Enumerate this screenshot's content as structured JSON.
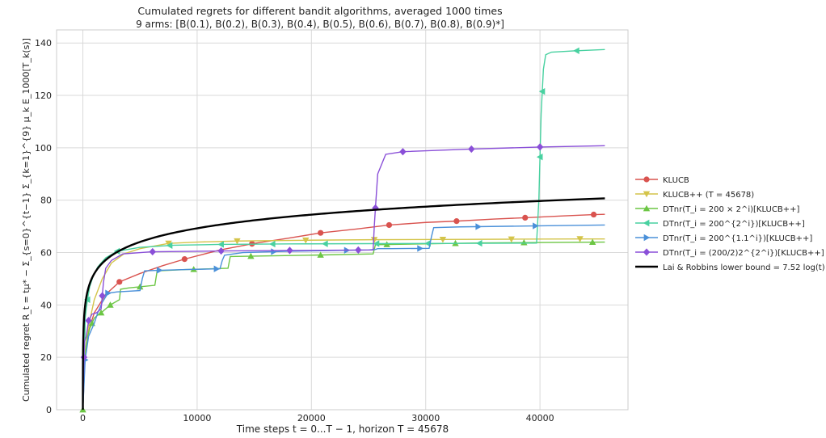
{
  "chart_data": {
    "type": "line",
    "title": "Cumulated regrets for different bandit algorithms, averaged 1000 times",
    "subtitle": "9 arms: [B(0.1), B(0.2), B(0.3), B(0.4), B(0.5), B(0.6), B(0.7), B(0.8), B(0.9)*]",
    "xlabel": "Time steps t = 0...T − 1, horizon T = 45678",
    "ylabel": "Cumulated regret R_t = tμ* − Σ_{s=0}^{t−1} Σ_{k=1}^{9} μ_k E_1000[T_k(s)]",
    "xlim": [
      -2300,
      47700
    ],
    "ylim": [
      0,
      145
    ],
    "x_ticks": [
      "0",
      "10000",
      "20000",
      "30000",
      "40000"
    ],
    "y_ticks": [
      "0",
      "20",
      "40",
      "60",
      "80",
      "100",
      "120",
      "140"
    ],
    "grid": true,
    "legend_position": "right",
    "series": [
      {
        "name": "KLUCB",
        "color": "#d9534f",
        "marker": "circle",
        "x": [
          0,
          200,
          500,
          1000,
          2000,
          3200,
          5000,
          7000,
          8900,
          12000,
          15000,
          18000,
          20800,
          24000,
          26800,
          30000,
          32700,
          36000,
          38700,
          42000,
          44700,
          45678
        ],
        "y": [
          0,
          22,
          30,
          37,
          44,
          48.8,
          52,
          55,
          57.5,
          61,
          63.5,
          65.5,
          67.5,
          69,
          70.5,
          71.5,
          72,
          72.8,
          73.3,
          74,
          74.5,
          74.6
        ],
        "markers_x": [
          3200,
          8900,
          14800,
          20800,
          26800,
          32700,
          38700,
          44700
        ]
      },
      {
        "name": "KLUCB++ (T = 45678)",
        "color": "#d4c44a",
        "marker": "triangle-down",
        "x": [
          0,
          200,
          500,
          1000,
          1700,
          2500,
          3600,
          5000,
          7500,
          10000,
          13500,
          19500,
          25500,
          31500,
          37500,
          43500,
          45678
        ],
        "y": [
          0,
          22,
          32,
          42,
          50,
          56,
          59.5,
          61.5,
          63.5,
          64,
          64.4,
          64.7,
          64.9,
          65,
          65.1,
          65.2,
          65.2
        ],
        "markers_x": [
          7500,
          13500,
          19500,
          25500,
          31500,
          37500,
          43500
        ]
      },
      {
        "name": "DTnr(T_i = 200 × 2^i)[KLUCB++]",
        "color": "#6cc644",
        "marker": "triangle-up",
        "x": [
          0,
          80,
          200,
          350,
          400,
          600,
          750,
          800,
          1000,
          1400,
          1600,
          2400,
          3200,
          3300,
          4000,
          6300,
          6500,
          9000,
          12700,
          12900,
          20000,
          25400,
          25600,
          35000,
          45678
        ],
        "y": [
          0,
          11.5,
          20,
          26,
          27.5,
          31,
          32.5,
          33,
          35,
          36.5,
          37,
          40,
          42,
          46,
          46.5,
          47.5,
          53,
          53.5,
          54,
          58.5,
          59,
          59.5,
          63,
          63.7,
          64
        ],
        "markers_x": [
          0,
          800,
          1600,
          2400,
          5000,
          9700,
          14700,
          20800,
          26600,
          32600,
          38600,
          44600
        ]
      },
      {
        "name": "DTnr(T_i = 200^{2^i})[KLUCB++]",
        "color": "#48d1a0",
        "marker": "triangle-left",
        "x": [
          0,
          100,
          180,
          200,
          400,
          600,
          900,
          1300,
          2000,
          3000,
          5000,
          8000,
          12000,
          18000,
          25000,
          32000,
          39700,
          39900,
          40100,
          40300,
          40500,
          41000,
          43000,
          45678
        ],
        "y": [
          0,
          18,
          28,
          35,
          42,
          47,
          51,
          54.5,
          58,
          60.5,
          62,
          62.8,
          63.1,
          63.3,
          63.4,
          63.5,
          63.6,
          80,
          113,
          130,
          135.5,
          136.5,
          137,
          137.5
        ],
        "markers_x": [
          400,
          3000,
          7600,
          12100,
          16600,
          21200,
          25700,
          30200,
          34700,
          40000,
          40200,
          43200
        ]
      },
      {
        "name": "DTnr(T_i = 200^{1.1^i})[KLUCB++]",
        "color": "#4a90d9",
        "marker": "triangle-right",
        "x": [
          0,
          200,
          500,
          1000,
          1300,
          1700,
          2200,
          3000,
          5000,
          5200,
          5400,
          6500,
          9000,
          12000,
          12200,
          12400,
          14000,
          18000,
          25000,
          25600,
          25800,
          27000,
          30300,
          30500,
          30700,
          33000,
          40000,
          45678
        ],
        "y": [
          0,
          19,
          28,
          33,
          37,
          41,
          44.5,
          45,
          45.5,
          50,
          53,
          53.2,
          53.5,
          53.8,
          57,
          59,
          60,
          60.5,
          61,
          61.2,
          61.5,
          61.5,
          61.6,
          66,
          69.5,
          69.8,
          70.2,
          70.5
        ],
        "markers_x": [
          200,
          2200,
          6700,
          11700,
          16700,
          23100,
          29500,
          34600,
          39600
        ]
      },
      {
        "name": "DTnr(T_i = (200/2)2^{2^i})[KLUCB++]",
        "color": "#8a4fd8",
        "marker": "diamond",
        "x": [
          0,
          100,
          150,
          300,
          500,
          800,
          1200,
          1600,
          1800,
          2000,
          2500,
          3500,
          6000,
          12000,
          18000,
          25400,
          25500,
          25600,
          25800,
          26500,
          28000,
          34000,
          40000,
          45678
        ],
        "y": [
          0,
          20,
          26,
          28,
          34,
          36.5,
          37,
          38.5,
          48.5,
          54,
          57,
          59.5,
          60.3,
          60.6,
          60.8,
          61,
          70,
          77,
          90,
          97.5,
          98.5,
          99.5,
          100.3,
          100.8
        ],
        "markers_x": [
          100,
          500,
          1700,
          6100,
          12100,
          18100,
          24100,
          25600,
          28000,
          34000,
          40000
        ]
      },
      {
        "name": "Lai & Robbins lower bound = 7.52 log(t)",
        "color": "#000000",
        "marker": "none",
        "log_coefficient": 7.52
      }
    ]
  }
}
